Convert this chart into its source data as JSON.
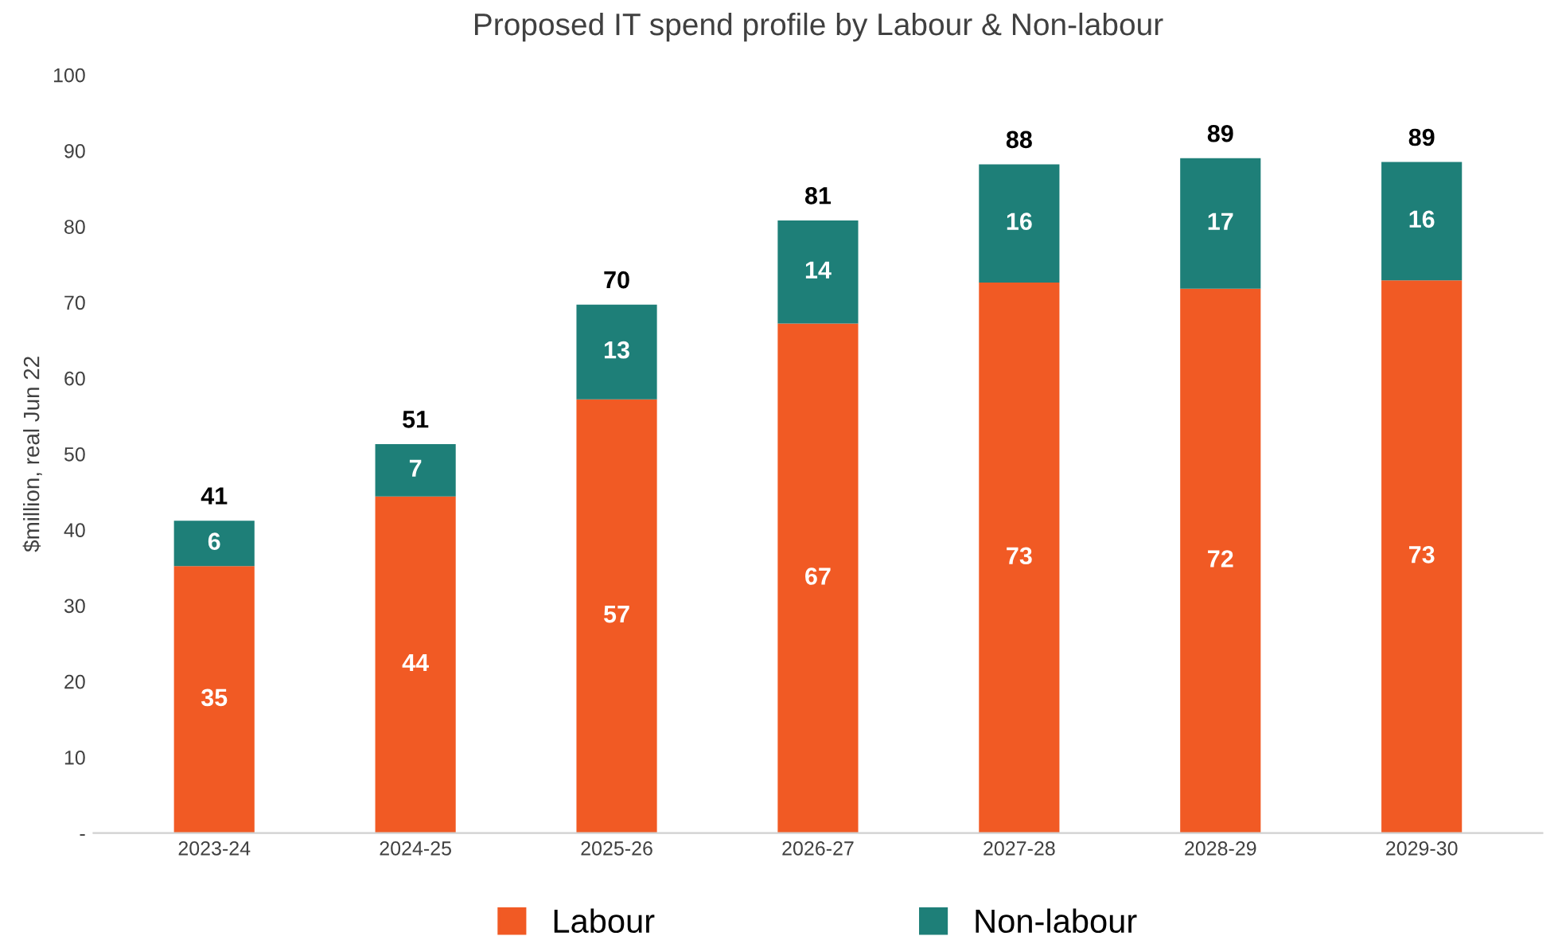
{
  "chart_data": {
    "type": "bar",
    "title": "Proposed IT spend profile by Labour & Non-labour",
    "ylabel": "$million, real Jun 22",
    "categories": [
      "2023-24",
      "2024-25",
      "2025-26",
      "2026-27",
      "2027-28",
      "2028-29",
      "2029-30"
    ],
    "stacked": true,
    "series": [
      {
        "name": "Labour",
        "color": "#f15a24",
        "values": [
          35.2,
          44.4,
          57.2,
          67.2,
          72.6,
          71.8,
          72.9
        ],
        "value_labels": [
          "35",
          "44",
          "57",
          "67",
          "73",
          "72",
          "73"
        ]
      },
      {
        "name": "Non-labour",
        "color": "#1e7f78",
        "values": [
          6.0,
          6.9,
          12.5,
          13.6,
          15.6,
          17.2,
          15.6
        ],
        "value_labels": [
          "6",
          "7",
          "13",
          "14",
          "16",
          "17",
          "16"
        ]
      }
    ],
    "totals": [
      "41",
      "51",
      "70",
      "81",
      "88",
      "89",
      "89"
    ],
    "ylim": [
      0,
      100
    ],
    "yticks": [
      {
        "value": 0,
        "label": "-"
      },
      10,
      20,
      30,
      40,
      50,
      60,
      70,
      80,
      90,
      100
    ],
    "grid": false,
    "legend": "bottom"
  }
}
